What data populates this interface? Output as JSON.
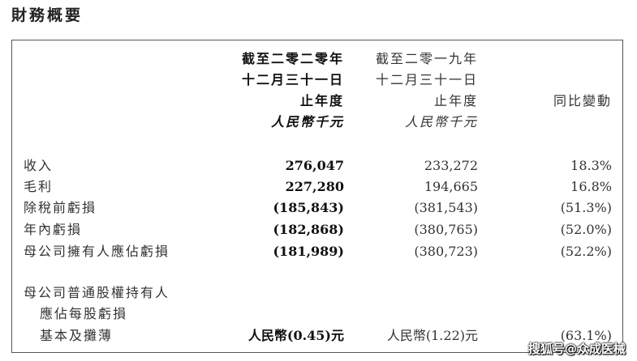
{
  "title": "財務概要",
  "header": {
    "col2020": [
      "截至二零二零年",
      "十二月三十一日",
      "止年度",
      "人民幣千元"
    ],
    "col2019": [
      "截至二零一九年",
      "十二月三十一日",
      "止年度",
      "人民幣千元"
    ],
    "change": "同比變動"
  },
  "rows": [
    {
      "label": "收入",
      "v2020": "276,047",
      "v2019": "233,272",
      "change": "18.3%"
    },
    {
      "label": "毛利",
      "v2020": "227,280",
      "v2019": "194,665",
      "change": "16.8%"
    },
    {
      "label": "除稅前虧損",
      "v2020": "(185,843)",
      "v2019": "(381,543)",
      "change": "(51.3%)"
    },
    {
      "label": "年內虧損",
      "v2020": "(182,868)",
      "v2019": "(380,765)",
      "change": "(52.0%)"
    },
    {
      "label": "母公司擁有人應佔虧損",
      "v2020": "(181,989)",
      "v2019": "(380,723)",
      "change": "(52.2%)"
    }
  ],
  "eps": {
    "label": [
      "母公司普通股權持有人",
      "應佔每股虧損",
      "基本及攤薄"
    ],
    "v2020": "人民幣(0.45)元",
    "v2019": "人民幣(1.22)元",
    "change": "(63.1%)"
  },
  "watermark": "搜狐号@众成医械"
}
